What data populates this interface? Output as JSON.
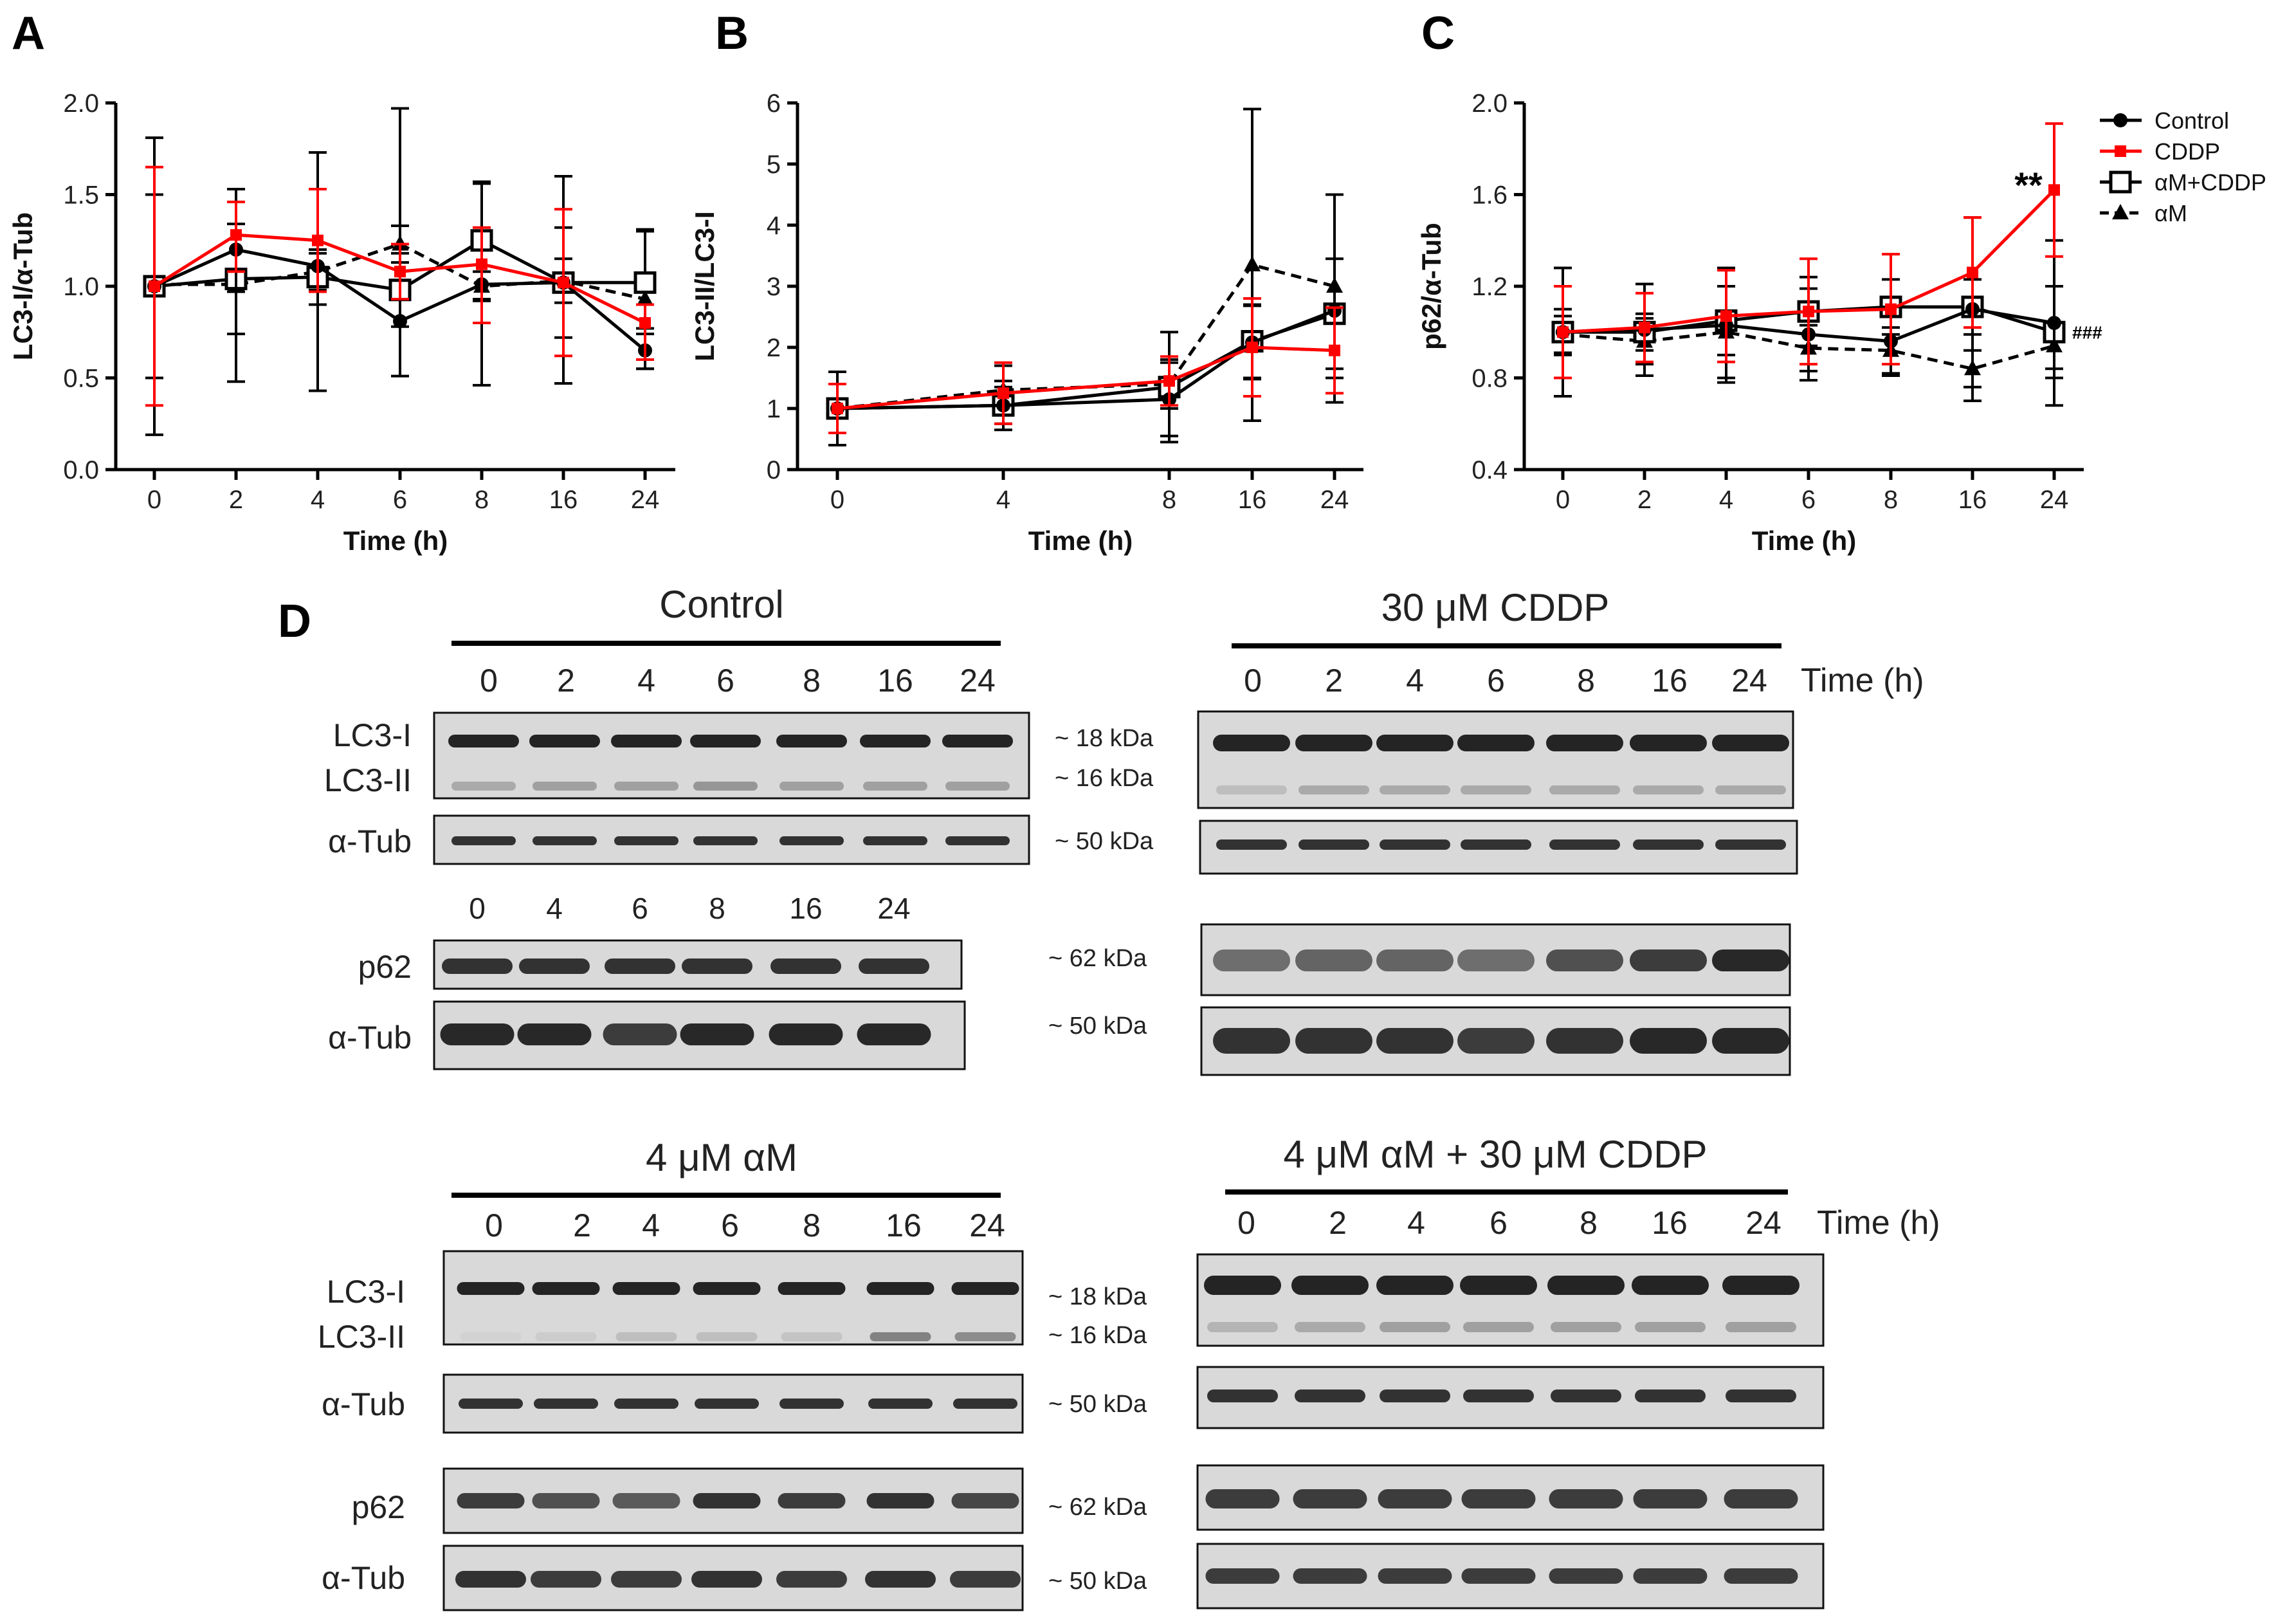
{
  "chart_data": [
    {
      "panel": "A",
      "type": "line",
      "ylabel": "LC3-I/α-Tub",
      "xlabel": "Time (h)",
      "x": [
        "0",
        "2",
        "4",
        "6",
        "8",
        "16",
        "24"
      ],
      "ylim": [
        0.0,
        2.0
      ],
      "yticks": [
        "0.0",
        "0.5",
        "1.0",
        "1.5",
        "2.0"
      ],
      "series": [
        {
          "name": "Control",
          "values": [
            1.0,
            1.2,
            1.11,
            0.81,
            1.01,
            1.02,
            0.65
          ],
          "err_hi": [
            0.81,
            0.33,
            0.62,
            1.16,
            0.55,
            0.58,
            0.12
          ],
          "err_lo": [
            0.81,
            0.72,
            0.68,
            0.3,
            0.55,
            0.55,
            0.1
          ]
        },
        {
          "name": "CDDP",
          "values": [
            1.0,
            1.28,
            1.25,
            1.08,
            1.12,
            1.02,
            0.8
          ],
          "err_hi": [
            0.65,
            0.18,
            0.28,
            0.15,
            0.2,
            0.4,
            0.1
          ],
          "err_lo": [
            0.65,
            0.2,
            0.28,
            0.15,
            0.32,
            0.4,
            0.2
          ]
        },
        {
          "name": "αM+CDDP",
          "values": [
            1.0,
            1.04,
            1.05,
            0.98,
            1.25,
            1.02,
            1.02
          ],
          "err_hi": [
            0.5,
            0.3,
            0.15,
            0.2,
            0.32,
            0.3,
            0.28
          ],
          "err_lo": [
            0.5,
            0.3,
            0.15,
            0.2,
            0.32,
            0.3,
            0.28
          ]
        },
        {
          "name": "αM",
          "values": [
            1.01,
            1.01,
            1.08,
            1.23,
            1.0,
            1.03,
            0.93
          ],
          "err_hi": [
            0.04,
            0.04,
            0.1,
            0.1,
            0.08,
            0.12,
            0.38
          ],
          "err_lo": [
            0.04,
            0.04,
            0.1,
            0.1,
            0.08,
            0.12,
            0.38
          ]
        }
      ]
    },
    {
      "panel": "B",
      "type": "line",
      "ylabel": "LC3-II/LC3-I",
      "xlabel": "Time (h)",
      "x": [
        "0",
        "4",
        "8",
        "16",
        "24"
      ],
      "ylim": [
        0,
        6
      ],
      "yticks": [
        "0",
        "1",
        "2",
        "3",
        "4",
        "5",
        "6"
      ],
      "series": [
        {
          "name": "Control",
          "values": [
            1.0,
            1.05,
            1.15,
            2.08,
            2.6
          ],
          "err_hi": [
            0.6,
            0.4,
            0.6,
            0.6,
            1.9
          ],
          "err_lo": [
            0.6,
            0.4,
            0.6,
            0.6,
            1.5
          ]
        },
        {
          "name": "CDDP",
          "values": [
            1.0,
            1.25,
            1.45,
            2.0,
            1.95
          ],
          "err_hi": [
            0.4,
            0.5,
            0.4,
            0.8,
            0.7
          ],
          "err_lo": [
            0.4,
            0.5,
            0.4,
            0.8,
            0.7
          ]
        },
        {
          "name": "αM+CDDP",
          "values": [
            1.0,
            1.05,
            1.35,
            2.1,
            2.55
          ],
          "err_hi": [
            0.4,
            0.3,
            0.9,
            0.6,
            0.9
          ],
          "err_lo": [
            0.4,
            0.3,
            0.9,
            0.6,
            0.9
          ]
        },
        {
          "name": "αM",
          "values": [
            1.0,
            1.3,
            1.4,
            3.35,
            3.0
          ],
          "err_hi": [
            0.6,
            0.4,
            0.4,
            2.55,
            1.5
          ],
          "err_lo": [
            0.6,
            0.4,
            0.4,
            2.55,
            1.5
          ]
        }
      ]
    },
    {
      "panel": "C",
      "type": "line",
      "ylabel": "p62/α-Tub",
      "xlabel": "Time (h)",
      "x": [
        "0",
        "2",
        "4",
        "6",
        "8",
        "16",
        "24"
      ],
      "ylim": [
        0.4,
        2.0
      ],
      "yticks": [
        "0.4",
        "0.8",
        "1.2",
        "1.6",
        "2.0"
      ],
      "annotation_star": "**",
      "annotation_hash": "###",
      "series": [
        {
          "name": "Control",
          "values": [
            1.0,
            1.01,
            1.03,
            0.99,
            0.96,
            1.1,
            1.04
          ],
          "err_hi": [
            0.28,
            0.2,
            0.25,
            0.2,
            0.15,
            0.4,
            0.36
          ],
          "err_lo": [
            0.28,
            0.2,
            0.25,
            0.2,
            0.15,
            0.4,
            0.36
          ]
        },
        {
          "name": "CDDP",
          "values": [
            1.0,
            1.02,
            1.07,
            1.09,
            1.1,
            1.26,
            1.62
          ],
          "err_hi": [
            0.2,
            0.15,
            0.2,
            0.23,
            0.24,
            0.24,
            0.29
          ],
          "err_lo": [
            0.2,
            0.15,
            0.2,
            0.23,
            0.24,
            0.24,
            0.29
          ]
        },
        {
          "name": "αM+CDDP",
          "values": [
            1.0,
            1.0,
            1.05,
            1.09,
            1.11,
            1.11,
            1.0
          ],
          "err_hi": [
            0.1,
            0.08,
            0.15,
            0.15,
            0.12,
            0.12,
            0.2
          ],
          "err_lo": [
            0.1,
            0.08,
            0.15,
            0.15,
            0.12,
            0.12,
            0.2
          ]
        },
        {
          "name": "αM",
          "values": [
            0.99,
            0.96,
            1.0,
            0.93,
            0.92,
            0.84,
            0.94
          ],
          "err_hi": [
            0.08,
            0.1,
            0.2,
            0.1,
            0.1,
            0.08,
            0.1
          ],
          "err_lo": [
            0.08,
            0.1,
            0.2,
            0.1,
            0.1,
            0.08,
            0.1
          ]
        }
      ]
    }
  ],
  "legend": [
    {
      "label": "Control",
      "color": "#000000",
      "marker": "circle",
      "dash": "solid"
    },
    {
      "label": "CDDP",
      "color": "#ff0000",
      "marker": "square",
      "dash": "solid"
    },
    {
      "label": "αM+CDDP",
      "color": "#000000",
      "marker": "open-square",
      "dash": "solid"
    },
    {
      "label": "αM",
      "color": "#000000",
      "marker": "triangle",
      "dash": "dashed"
    }
  ],
  "panel_labels": {
    "a": "A",
    "b": "B",
    "c": "C",
    "d": "D"
  },
  "blots": {
    "control": {
      "title": "Control",
      "lanes": [
        "0",
        "2",
        "4",
        "6",
        "8",
        "16",
        "24"
      ],
      "p62_lanes": [
        "0",
        "4",
        "6",
        "8",
        "16",
        "24"
      ],
      "row_lc3i": "LC3-I",
      "row_lc3ii": "LC3-II",
      "row_tub": "α-Tub",
      "row_p62": "p62",
      "row_tub2": "α-Tub",
      "p62_intensity": [
        0.85,
        0.85,
        0.85,
        0.85,
        0.85,
        0.85
      ],
      "tub2_intensity": [
        0.9,
        0.9,
        0.8,
        0.9,
        0.9,
        0.9
      ],
      "lc3ii_intensity": [
        0.25,
        0.3,
        0.3,
        0.35,
        0.3,
        0.3,
        0.3
      ]
    },
    "cddp": {
      "title": "30 μM CDDP",
      "lanes": [
        "0",
        "2",
        "4",
        "6",
        "8",
        "16",
        "24"
      ],
      "time_label": "Time (h)",
      "p62_intensity": [
        0.55,
        0.6,
        0.6,
        0.55,
        0.7,
        0.8,
        0.9
      ],
      "tub2_intensity": [
        0.85,
        0.85,
        0.85,
        0.8,
        0.85,
        0.9,
        0.9
      ],
      "lc3ii_intensity": [
        0.15,
        0.25,
        0.25,
        0.25,
        0.25,
        0.25,
        0.25
      ]
    },
    "am": {
      "title": "4 μM αM",
      "lanes": [
        "0",
        "2",
        "4",
        "6",
        "8",
        "16",
        "24"
      ],
      "row_lc3i": "LC3-I",
      "row_lc3ii": "LC3-II",
      "row_tub": "α-Tub",
      "row_p62": "p62",
      "row_tub2": "α-Tub",
      "p62_intensity": [
        0.8,
        0.7,
        0.65,
        0.85,
        0.8,
        0.85,
        0.75
      ],
      "tub2_intensity": [
        0.85,
        0.8,
        0.8,
        0.85,
        0.8,
        0.85,
        0.8
      ],
      "lc3ii_intensity": [
        0.05,
        0.08,
        0.15,
        0.15,
        0.12,
        0.45,
        0.4
      ]
    },
    "am_cddp": {
      "title": "4 μM αM + 30 μM CDDP",
      "lanes": [
        "0",
        "2",
        "4",
        "6",
        "8",
        "16",
        "24"
      ],
      "time_label": "Time (h)",
      "p62_intensity": [
        0.8,
        0.8,
        0.8,
        0.8,
        0.8,
        0.8,
        0.8
      ],
      "tub2_intensity": [
        0.8,
        0.8,
        0.8,
        0.8,
        0.8,
        0.8,
        0.8
      ],
      "lc3ii_intensity": [
        0.2,
        0.25,
        0.3,
        0.3,
        0.3,
        0.3,
        0.3
      ]
    }
  },
  "mw_markers": {
    "kda18": "~ 18 kDa",
    "kda16": "~ 16 kDa",
    "kda50": "~ 50 kDa",
    "kda62": "~ 62 kDa"
  }
}
